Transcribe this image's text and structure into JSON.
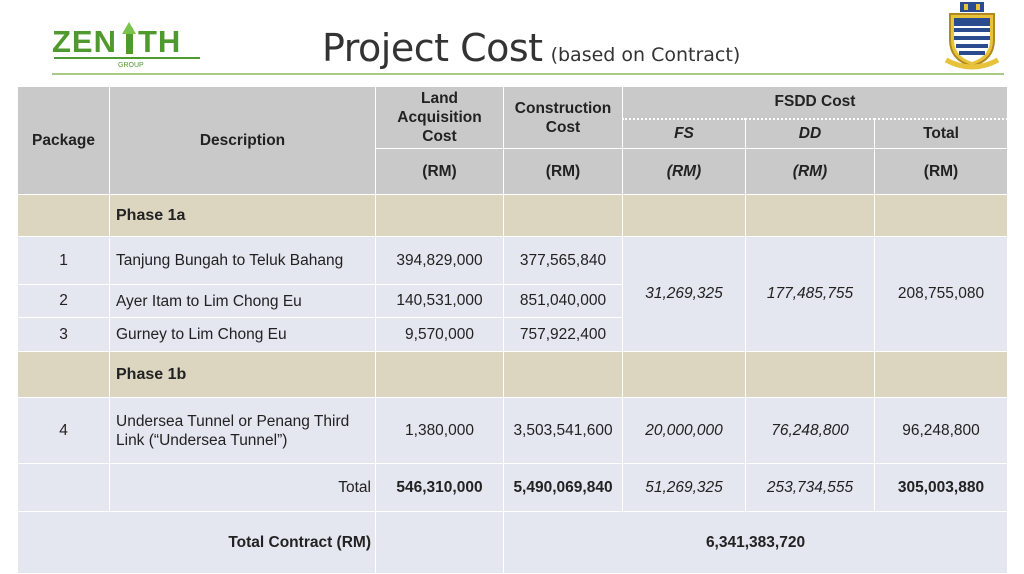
{
  "header": {
    "logo_text": "ZENITH",
    "logo_sub": "GROUP",
    "title": "Project Cost",
    "subtitle": "(based on Contract)"
  },
  "table": {
    "headers": {
      "package": "Package",
      "description": "Description",
      "land": "Land Acquisition Cost",
      "construction": "Construction Cost",
      "fsdd": "FSDD Cost",
      "fs": "FS",
      "dd": "DD",
      "total": "Total",
      "unit": "(RM)"
    },
    "phase1a": "Phase 1a",
    "phase1b": "Phase 1b",
    "rows": [
      {
        "package": "1",
        "description": "Tanjung Bungah to Teluk Bahang",
        "land": "394,829,000",
        "construction": "377,565,840"
      },
      {
        "package": "2",
        "description": "Ayer Itam to Lim Chong Eu",
        "land": "140,531,000",
        "construction": "851,040,000"
      },
      {
        "package": "3",
        "description": "Gurney to Lim Chong Eu",
        "land": "9,570,000",
        "construction": "757,922,400"
      },
      {
        "package": "4",
        "description": "Undersea Tunnel or Penang Third Link (“Undersea Tunnel”)",
        "land": "1,380,000",
        "construction": "3,503,541,600",
        "fs": "20,000,000",
        "dd": "76,248,800",
        "total": "96,248,800"
      }
    ],
    "phase1a_fsdd": {
      "fs": "31,269,325",
      "dd": "177,485,755",
      "total": "208,755,080"
    },
    "totals": {
      "label": "Total",
      "land": "546,310,000",
      "construction": "5,490,069,840",
      "fs": "51,269,325",
      "dd": "253,734,555",
      "total": "305,003,880"
    },
    "contract": {
      "label": "Total Contract (RM)",
      "value": "6,341,383,720"
    }
  },
  "colors": {
    "header_bg": "#c9c9c9",
    "phase_bg": "#dcd6c0",
    "row_bg": "#e4e6f0",
    "logo_green": "#4f9a2e"
  }
}
